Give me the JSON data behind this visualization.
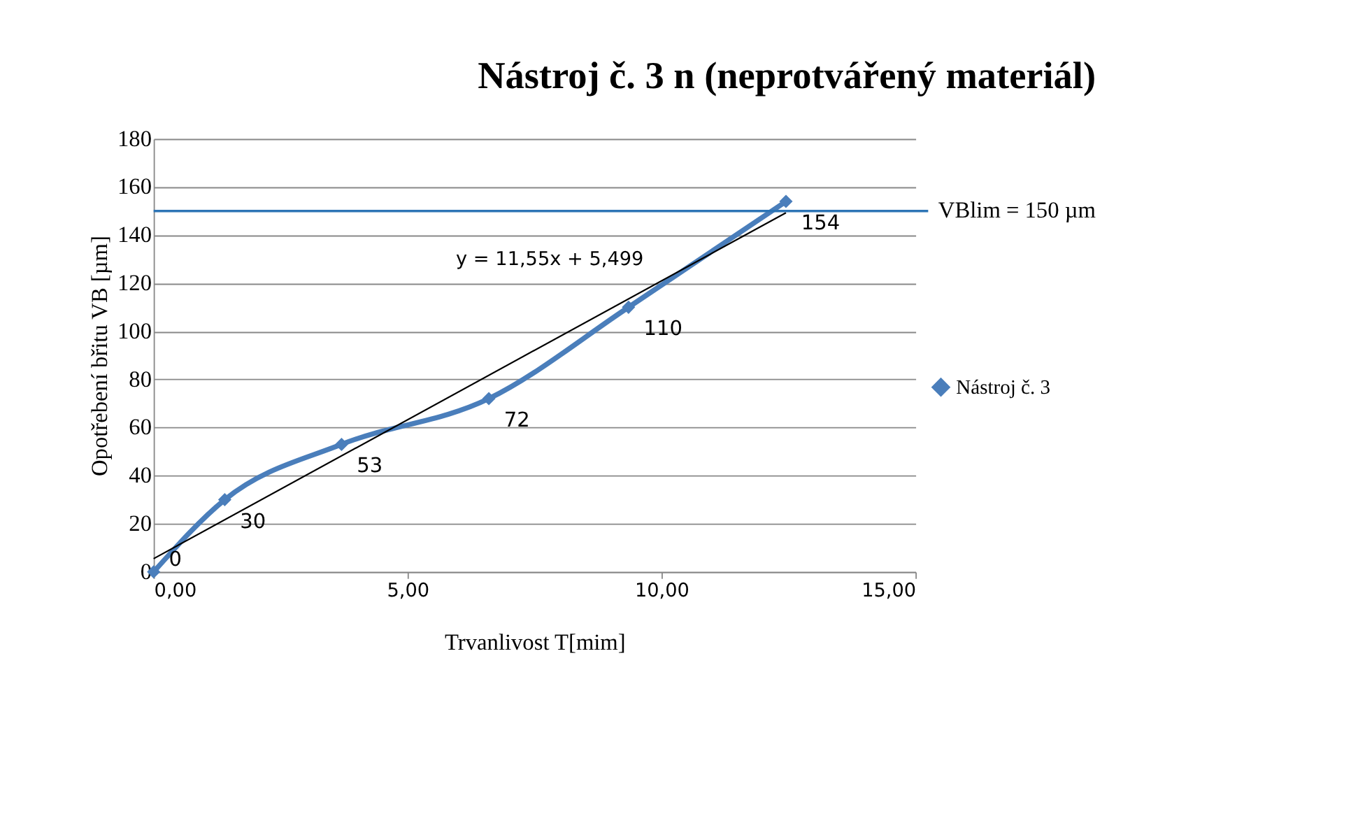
{
  "chart_data": {
    "type": "line",
    "title": "Nástroj č. 3 n (neprotvářený materiál)",
    "xlabel": "Trvanlivost T[mim]",
    "ylabel": "Opotřebení břitu VB [µm]",
    "series": [
      {
        "name": "Nástroj č. 3",
        "color": "#4a7ebb",
        "x": [
          0,
          1.4,
          3.7,
          6.6,
          9.35,
          12.45
        ],
        "values": [
          0,
          30,
          53,
          72,
          110,
          154
        ],
        "value_labels": [
          "0",
          "30",
          "53",
          "72",
          "110",
          "154"
        ],
        "marker": "diamond"
      },
      {
        "type": "line",
        "color": "#000000",
        "x": [
          0,
          12.45
        ],
        "values": [
          5.5,
          149.3
        ],
        "marker": "none"
      }
    ],
    "xlim": [
      0,
      15
    ],
    "xticks": [
      {
        "value": 0,
        "label": "0,00"
      },
      {
        "value": 5,
        "label": "5,00"
      },
      {
        "value": 10,
        "label": "10,00"
      },
      {
        "value": 15,
        "label": "15,00"
      }
    ],
    "ylim": [
      0,
      180
    ],
    "yticks": [
      0,
      20,
      40,
      60,
      80,
      100,
      120,
      140,
      160,
      180
    ],
    "ref_lines": [
      {
        "axis": "y",
        "value": 150,
        "label": "VBlim = 150 µm",
        "color": "#2e75b6"
      }
    ],
    "annotations": [
      "y = 11,55x + 5,499"
    ],
    "grid": "y",
    "legend": "right"
  }
}
